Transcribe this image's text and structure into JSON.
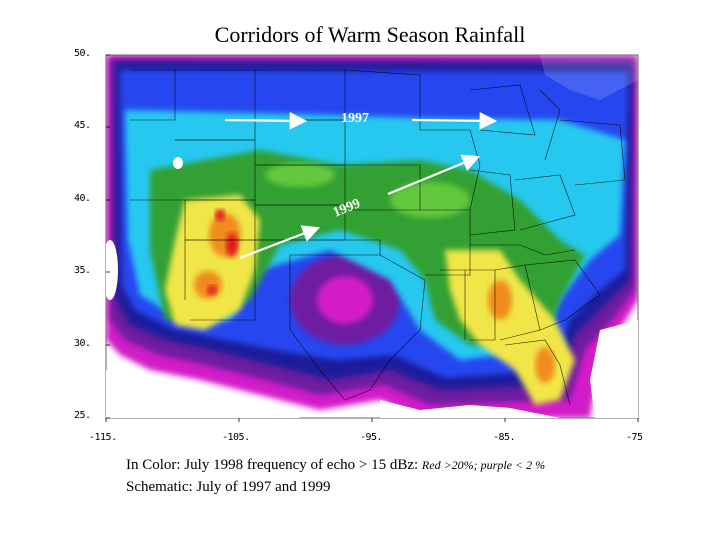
{
  "title": "Corridors of Warm Season Rainfall",
  "axes": {
    "lat_ticks": [
      "50.",
      "45.",
      "40.",
      "35.",
      "30.",
      "25."
    ],
    "lon_ticks": [
      "-115.",
      "-105.",
      "-95.",
      "-85.",
      "-75"
    ]
  },
  "annotations": {
    "label_1997": "1997",
    "label_1999": "1999"
  },
  "caption": {
    "line1_main": "In Color: July 1998 frequency of echo > 15 dBz: ",
    "line1_note": "Red  >20%; purple < 2 %",
    "line2": "Schematic: July of 1997 and 1999"
  },
  "colors": {
    "red": "#e0141e",
    "orange": "#f08c1e",
    "yellow": "#f0e646",
    "green": "#32a032",
    "light_green": "#64c83c",
    "cyan": "#28c8f0",
    "blue": "#2846f0",
    "dark_blue": "#1e1e9b",
    "purple": "#6e1ea0",
    "magenta": "#d21ec8",
    "arrow": "#ffffff"
  }
}
